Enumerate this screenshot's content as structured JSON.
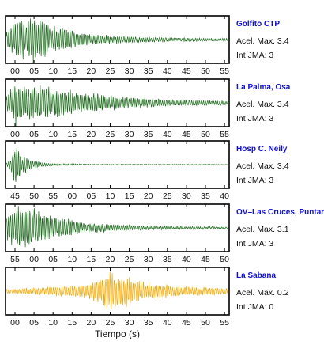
{
  "chart_data": [
    {
      "type": "line",
      "station": "Golfito CTP",
      "info": [
        "Acel. Max. 3.4",
        "Int JMA: 3"
      ],
      "tick_labels": [
        "00",
        "05",
        "10",
        "15",
        "20",
        "25",
        "30",
        "35",
        "40",
        "45",
        "50",
        "55"
      ],
      "color": "#1a6b1a",
      "envelope": [
        [
          0,
          0.35
        ],
        [
          0.03,
          0.9
        ],
        [
          0.12,
          1.0
        ],
        [
          0.22,
          0.6
        ],
        [
          0.4,
          0.22
        ],
        [
          0.7,
          0.1
        ],
        [
          1,
          0.06
        ]
      ],
      "seed": 11,
      "grid": false
    },
    {
      "type": "line",
      "station": "La Palma, Osa",
      "info": [
        "Acel. Max. 3.4",
        "Int JMA: 3"
      ],
      "tick_labels": [
        "00",
        "05",
        "10",
        "15",
        "20",
        "25",
        "30",
        "35",
        "40",
        "45",
        "50",
        "55"
      ],
      "color": "#1a6b1a",
      "envelope": [
        [
          0,
          0.3
        ],
        [
          0.04,
          1.0
        ],
        [
          0.15,
          0.8
        ],
        [
          0.3,
          0.55
        ],
        [
          0.5,
          0.3
        ],
        [
          0.75,
          0.15
        ],
        [
          1,
          0.1
        ]
      ],
      "seed": 23,
      "grid": false
    },
    {
      "type": "line",
      "station": "Hosp C. Neily",
      "info": [
        "Acel. Max. 3.4",
        "Int JMA: 3"
      ],
      "tick_labels": [
        "45",
        "50",
        "55",
        "00",
        "05",
        "10",
        "15",
        "20",
        "25",
        "30",
        "35",
        "40"
      ],
      "color": "#1a6b1a",
      "envelope": [
        [
          0,
          0.08
        ],
        [
          0.02,
          0.3
        ],
        [
          0.04,
          1.0
        ],
        [
          0.07,
          0.5
        ],
        [
          0.12,
          0.18
        ],
        [
          0.2,
          0.06
        ],
        [
          0.4,
          0.02
        ],
        [
          1,
          0.01
        ]
      ],
      "seed": 37,
      "grid": false
    },
    {
      "type": "line",
      "station": "OV–Las Cruces, Puntar",
      "info": [
        "Acel. Max. 3.1",
        "Int JMA: 3"
      ],
      "tick_labels": [
        "55",
        "00",
        "05",
        "10",
        "15",
        "20",
        "25",
        "30",
        "35",
        "40",
        "45",
        "50"
      ],
      "color": "#1a6b1a",
      "envelope": [
        [
          0,
          0.5
        ],
        [
          0.03,
          0.9
        ],
        [
          0.1,
          1.0
        ],
        [
          0.2,
          0.6
        ],
        [
          0.35,
          0.25
        ],
        [
          0.6,
          0.1
        ],
        [
          1,
          0.05
        ]
      ],
      "seed": 41,
      "grid": false
    },
    {
      "type": "line",
      "station": "La Sabana",
      "info": [
        "Acel. Max. 0.2",
        "Int JMA: 0"
      ],
      "tick_labels": [
        "00",
        "05",
        "10",
        "15",
        "20",
        "25",
        "30",
        "35",
        "40",
        "45",
        "50",
        "55"
      ],
      "color": "#f2a900",
      "envelope": [
        [
          0,
          0.1
        ],
        [
          0.2,
          0.22
        ],
        [
          0.35,
          0.3
        ],
        [
          0.42,
          0.55
        ],
        [
          0.47,
          1.0
        ],
        [
          0.55,
          0.6
        ],
        [
          0.65,
          0.35
        ],
        [
          0.8,
          0.22
        ],
        [
          1,
          0.15
        ]
      ],
      "seed": 53,
      "grid": false
    }
  ],
  "xlabel": "Tiempo (s)"
}
